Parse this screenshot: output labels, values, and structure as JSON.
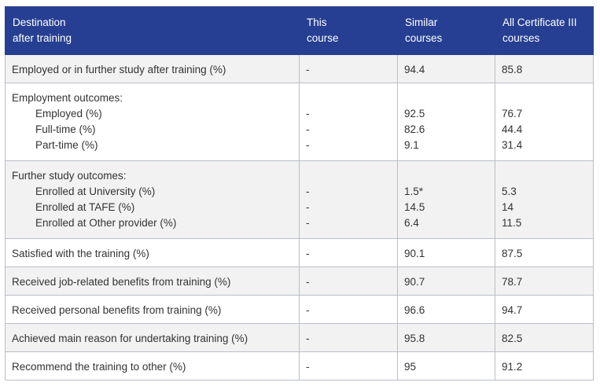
{
  "header": {
    "col1": [
      "Destination",
      "after training"
    ],
    "col2": [
      "This",
      "course"
    ],
    "col3": [
      "Similar",
      "courses"
    ],
    "col4": [
      "All Certificate III",
      "courses"
    ]
  },
  "rows": {
    "employed_or_study": {
      "label": "Employed or in further study after training (%)",
      "this": "-",
      "similar": "94.4",
      "all": "85.8"
    },
    "employment": {
      "heading": "Employment outcomes:",
      "items": [
        {
          "label": "Employed (%)",
          "this": "-",
          "similar": "92.5",
          "all": "76.7"
        },
        {
          "label": "Full-time (%)",
          "this": "-",
          "similar": "82.6",
          "all": "44.4"
        },
        {
          "label": "Part-time (%)",
          "this": "-",
          "similar": "9.1",
          "all": "31.4"
        }
      ]
    },
    "further_study": {
      "heading": "Further study outcomes:",
      "items": [
        {
          "label": "Enrolled at University (%)",
          "this": "-",
          "similar": "1.5*",
          "all": "5.3"
        },
        {
          "label": "Enrolled at TAFE (%)",
          "this": "-",
          "similar": "14.5",
          "all": "14"
        },
        {
          "label": "Enrolled at Other provider (%)",
          "this": "-",
          "similar": "6.4",
          "all": "11.5"
        }
      ]
    },
    "satisfied": {
      "label": "Satisfied with the training (%)",
      "this": "-",
      "similar": "90.1",
      "all": "87.5"
    },
    "job_benefits": {
      "label": "Received job-related benefits from training (%)",
      "this": "-",
      "similar": "90.7",
      "all": "78.7"
    },
    "personal_benefits": {
      "label": "Received personal benefits from training (%)",
      "this": "-",
      "similar": "96.6",
      "all": "94.7"
    },
    "main_reason": {
      "label": "Achieved main reason for undertaking training (%)",
      "this": "-",
      "similar": "95.8",
      "all": "82.5"
    },
    "recommend": {
      "label": "Recommend the training to other (%)",
      "this": "-",
      "similar": "95",
      "all": "91.2"
    }
  }
}
